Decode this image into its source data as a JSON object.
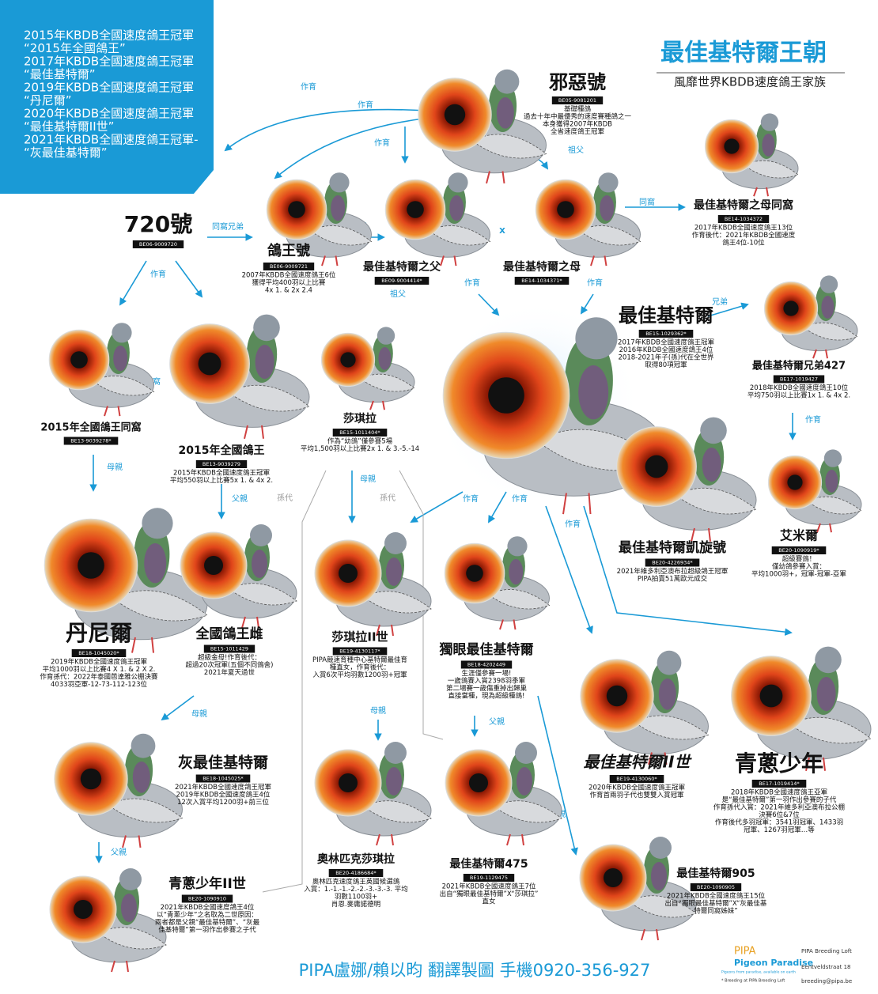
{
  "header": {
    "lines": [
      "2015年KBDB全國速度鴿王冠軍",
      "“2015年全國鴿王”",
      "2017年KBDB全國速度鴿王冠軍",
      "“最佳基特爾”",
      "2019年KBDB全國速度鴿王冠軍",
      "“丹尼爾”",
      "2020年KBDB全國速度鴿王冠軍",
      "“最佳基特爾II世”",
      "2021年KBDB全國速度鴿王冠軍-",
      "“灰最佳基特爾”"
    ],
    "title": "最佳基特爾王朝",
    "subtitle": "風靡世界KBDB速度鴿王家族"
  },
  "nodes": [
    {
      "name": "邪惡號",
      "ring": "BE05-9081201",
      "desc": [
        "基礎種鴿",
        "過去十年中最優秀的速度賽種鴿之一",
        "本身獲得2007年KBDB",
        "全省速度鴿王冠軍"
      ]
    },
    {
      "name": "720號",
      "ring": "BE06-9009720",
      "desc": []
    },
    {
      "name": "鴿王號",
      "ring": "BE06-9009721",
      "desc": [
        "2007年KBDB全國速度鴿王6位",
        "獲得平均400羽以上比賽",
        "4x 1. & 2x 2.4"
      ]
    },
    {
      "name": "最佳基特爾之父",
      "ring": "BE09-9004414*",
      "desc": []
    },
    {
      "name": "最佳基特爾之母",
      "ring": "BE14-1034371*",
      "desc": []
    },
    {
      "name": "最佳基特爾之母同窩",
      "ring": "BE14-1034372",
      "desc": [
        "2017年KBDB全國速度鴿王13位",
        "作育後代：2021年KBDB全國速度",
        "鴿王4位-10位"
      ]
    },
    {
      "name": "最佳基特爾",
      "ring": "BE15-1029362*",
      "desc": [
        "2017年KBDB全國速度鴿王冠軍",
        "2016年KBDB全國速度鴿王4位",
        "2018-2021年子(孫)代在全世界",
        "取得80項冠軍"
      ]
    },
    {
      "name": "最佳基特爾兄弟427",
      "ring": "BE17-1019427",
      "desc": [
        "2018年KBDB全國速度鴿王10位",
        "平均750羽以上比賽1x 1. & 4x 2."
      ]
    },
    {
      "name": "2015年全國鴿王同窩",
      "ring": "BE13-9039278*",
      "desc": []
    },
    {
      "name": "2015年全國鴿王",
      "ring": "BE13-9039279",
      "desc": [
        "2015年KBDB全國速度鴿王冠軍",
        "平均550羽以上比賽5x 1. & 4x 2."
      ]
    },
    {
      "name": "莎琪拉",
      "ring": "BE15-1011404*",
      "desc": [
        "作為“幼鴿”僅參賽5場",
        "平均1,500羽以上比賽2x 1. & 3.-5.-14"
      ]
    },
    {
      "name": "最佳基特爾凱旋號",
      "ring": "BE20-4226934*",
      "desc": [
        "2021年維多利亞澳布拉超級鴿王冠軍",
        "PIPA拍賣51萬歐元成交"
      ]
    },
    {
      "name": "艾米爾",
      "ring": "BE20-1090919*",
      "desc": [
        "超級賽鴿！",
        "僅幼鴿參賽入賞：",
        "平均1000羽+，冠軍-冠軍-亞軍"
      ]
    },
    {
      "name": "丹尼爾",
      "ring": "BE18-1045020*",
      "desc": [
        "2019年KBDB全國速度鴿王冠軍",
        "平均1000羽以上比賽4 X 1. & 2 X 2.",
        "作育孫代：2022年泰國芭達雅公棚決賽",
        "4033羽亞軍-12-73-112-123位"
      ]
    },
    {
      "name": "全國鴿王雌",
      "ring": "BE15-1011429",
      "desc": [
        "超級金母!作育後代：",
        "超過20次冠軍(五個不同鴿舍)",
        "2021年夏天過世"
      ]
    },
    {
      "name": "莎琪拉II世",
      "ring": "BE19-4130117*",
      "desc": [
        "PIPA競速育種中心基特爾最佳育",
        "種直女，作育後代：",
        "入賞6次平均羽數1200羽+冠軍"
      ]
    },
    {
      "name": "獨眼最佳基特爾",
      "ring": "BE18-4202449",
      "desc": [
        "生涯僅參賽一場!",
        "一歲鴿賽入賞2398羽季軍",
        "第二場賽一歲傷重掉出歸巢",
        "直接當種，現為超級種鴿!"
      ]
    },
    {
      "name": "最佳基特爾II世",
      "ring": "BE19-4130060*",
      "desc": [
        "2020年KBDB全國速度鴿王冠軍",
        "作育首兩羽子代也雙雙入賞冠軍"
      ]
    },
    {
      "name": "青蔥少年",
      "ring": "BE17-1019414*",
      "desc": [
        "2018年KBDB全國速度鴿王亞軍",
        "是“最佳基特爾”第一羽作出參賽的子代",
        "作育孫代入賞：2021年維多利亞澳布拉公棚",
        "決賽6位&7位",
        "作育後代多羽冠軍：3541羽冠軍、1433羽",
        "冠軍、1267羽冠軍…等"
      ]
    },
    {
      "name": "灰最佳基特爾",
      "ring": "BE18-1045025*",
      "desc": [
        "2021年KBDB全國速度鴿王冠軍",
        "2019年KBDB全國速度鴿王4位",
        "12次入賞平均1200羽+前三位"
      ]
    },
    {
      "name": "奧林匹克莎琪拉",
      "ring": "BE20-4186684*",
      "desc": [
        "奧林匹克速度鴿王英國候選鴿",
        "入賞：1.-1.-1.-2.-2.-3.-3.-3. 平均",
        "羽數1100羽+",
        "肖恩.麥庸諾德明"
      ]
    },
    {
      "name": "最佳基特爾475",
      "ring": "BE19-1129475",
      "desc": [
        "2021年KBDB全國速度鴿王7位",
        "出自“獨眼最佳基特爾”X“莎琪拉”",
        "直女"
      ]
    },
    {
      "name": "青蔥少年II世",
      "ring": "BE20-1090910",
      "desc": [
        "2021年KBDB全國速度鴿王4位",
        "以“青蔥少年”之名取為二世原因：",
        "兩者都是父親“最佳基特爾”、“灰最",
        "佳基特爾”第一羽作出參賽之子代"
      ]
    },
    {
      "name": "最佳基特爾905",
      "ring": "BE20-1090905",
      "desc": [
        "2021年KBDB全國速度鴿王15位",
        "出自“獨眼最佳基特爾”X“灰最佳基",
        "特爾同窩姊妹”"
      ]
    }
  ],
  "labels": [
    "作育",
    "作育",
    "作育",
    "祖父",
    "同窩兄弟",
    "兄弟",
    "X",
    "作育",
    "祖父",
    "作育",
    "作育",
    "同窩",
    "兄弟",
    "同窩",
    "作育",
    "母親",
    "父親",
    "孫代",
    "母親",
    "孫代",
    "作育",
    "作育",
    "作育",
    "作育",
    "母親",
    "父親",
    "母親",
    "父親",
    "父親"
  ],
  "footer": {
    "credit": "PIPA盧娜/賴以昀 翻譯製圖 手機0920-356-927",
    "logo": "PIPA",
    "brand": "Pigeon Paradise",
    "tagline": "Pigeons from paradise, available on earth",
    "note": "* Breeding at PIPA Breeding Loft",
    "address": [
      "PIPA Breeding Loft",
      "Eentveldstraat 18",
      "breeding@pipa.be"
    ]
  }
}
